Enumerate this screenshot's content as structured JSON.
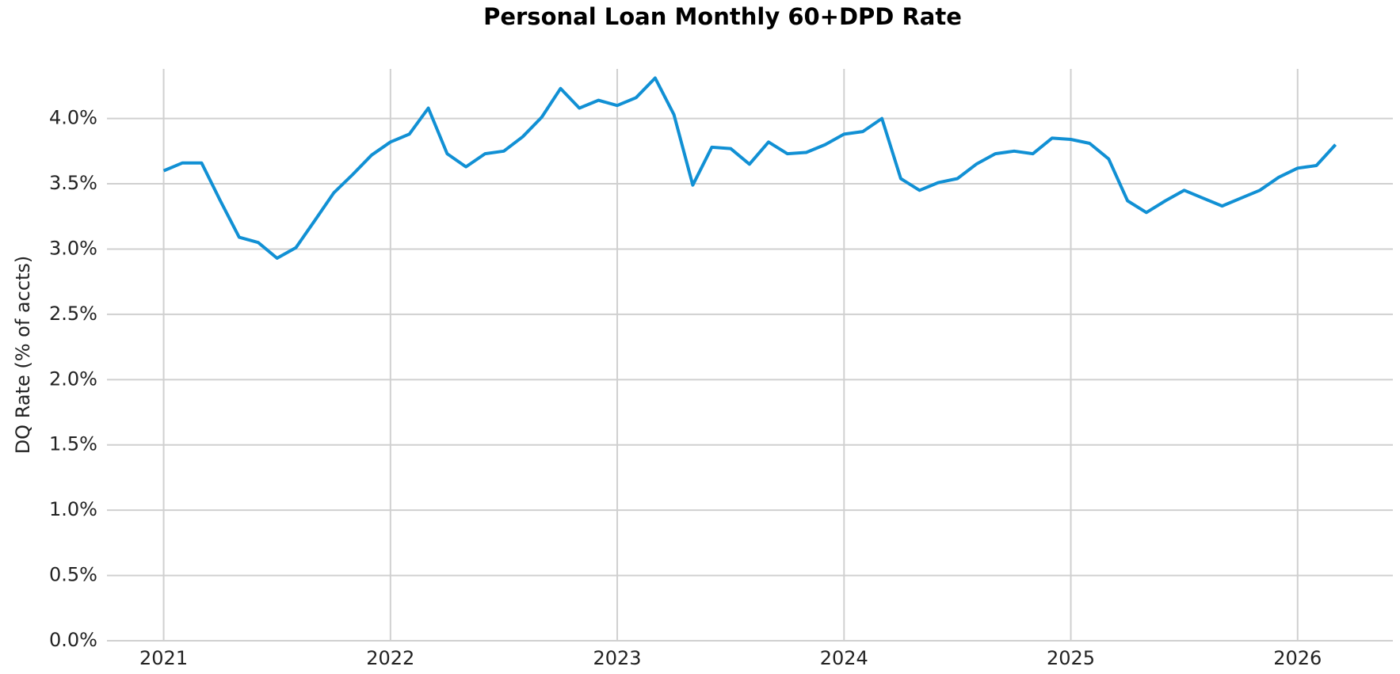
{
  "chart_data": {
    "type": "line",
    "title": "Personal Loan Monthly 60+DPD Rate",
    "y_label": "DQ Rate (% of accts)",
    "x": [
      2021.0,
      2021.083,
      2021.167,
      2021.25,
      2021.333,
      2021.417,
      2021.5,
      2021.583,
      2021.667,
      2021.75,
      2021.833,
      2021.917,
      2022.0,
      2022.083,
      2022.167,
      2022.25,
      2022.333,
      2022.417,
      2022.5,
      2022.583,
      2022.667,
      2022.75,
      2022.833,
      2022.917,
      2023.0,
      2023.083,
      2023.167,
      2023.25,
      2023.333,
      2023.417,
      2023.5,
      2023.583,
      2023.667,
      2023.75,
      2023.833,
      2023.917,
      2024.0,
      2024.083,
      2024.167,
      2024.25,
      2024.333,
      2024.417,
      2024.5,
      2024.583,
      2024.667,
      2024.75,
      2024.833,
      2024.917,
      2025.0,
      2025.083,
      2025.167,
      2025.25,
      2025.333,
      2025.417,
      2025.5,
      2025.583,
      2025.667,
      2025.75,
      2025.833,
      2025.917,
      2026.0,
      2026.083,
      2026.167
    ],
    "series": [
      {
        "name": "60+DPD Rate",
        "color": "#1190d4",
        "values": [
          3.6,
          3.66,
          3.66,
          3.37,
          3.09,
          3.05,
          2.93,
          3.01,
          3.22,
          3.43,
          3.57,
          3.72,
          3.82,
          3.88,
          4.08,
          3.73,
          3.63,
          3.73,
          3.75,
          3.86,
          4.01,
          4.23,
          4.08,
          4.14,
          4.1,
          4.16,
          4.31,
          4.03,
          3.49,
          3.78,
          3.77,
          3.65,
          3.82,
          3.73,
          3.74,
          3.8,
          3.88,
          3.9,
          4.0,
          3.54,
          3.45,
          3.51,
          3.54,
          3.65,
          3.73,
          3.75,
          3.73,
          3.85,
          3.84,
          3.81,
          3.69,
          3.37,
          3.28,
          3.37,
          3.45,
          3.39,
          3.33,
          3.39,
          3.45,
          3.55,
          3.62,
          3.64,
          3.8
        ]
      }
    ],
    "xlim": [
      2020.75,
      2026.42
    ],
    "xticks": [
      2021,
      2022,
      2023,
      2024,
      2025,
      2026
    ],
    "ylim": [
      0,
      4.38
    ],
    "yticks": [
      {
        "value": 0,
        "label": "0.0%"
      },
      {
        "value": 0.5,
        "label": "0.5%"
      },
      {
        "value": 1,
        "label": "1.0%"
      },
      {
        "value": 1.5,
        "label": "1.5%"
      },
      {
        "value": 2,
        "label": "2.0%"
      },
      {
        "value": 2.5,
        "label": "2.5%"
      },
      {
        "value": 3,
        "label": "3.0%"
      },
      {
        "value": 3.5,
        "label": "3.5%"
      },
      {
        "value": 4,
        "label": "4.0%"
      }
    ],
    "grid": true
  }
}
